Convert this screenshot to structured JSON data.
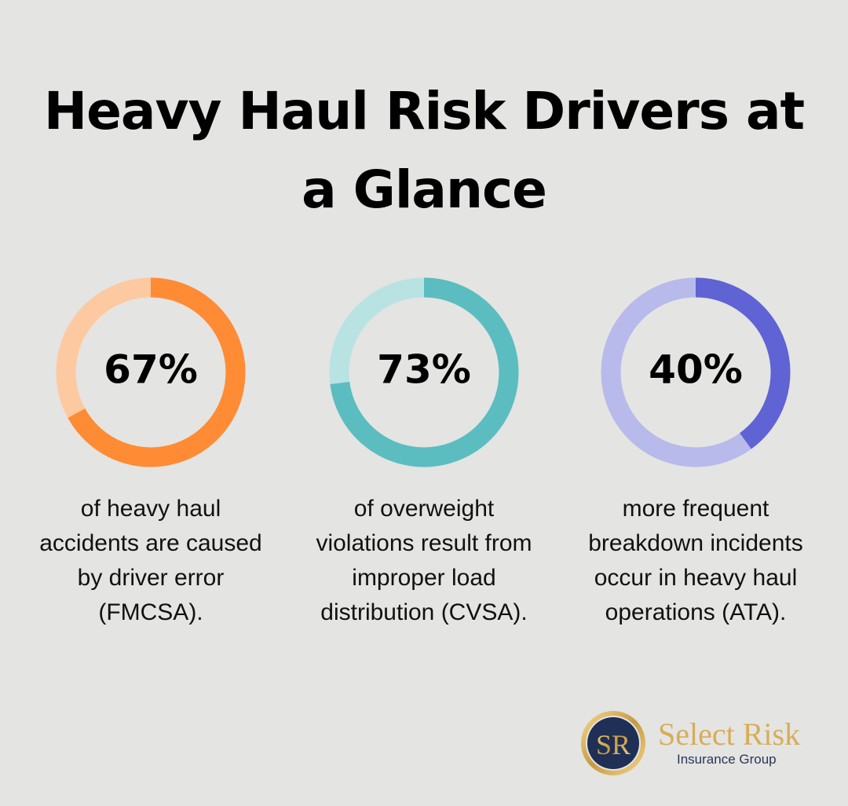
{
  "title": "Heavy Haul Risk Drivers at a Glance",
  "chart_data": [
    {
      "type": "donut",
      "values": [
        67
      ],
      "value_labels": [
        "67%"
      ],
      "color": "#ff8b34",
      "track_color": "#fdc9a1",
      "caption": [
        "of heavy haul",
        "accidents are caused",
        "by driver error",
        "(FMCSA)."
      ]
    },
    {
      "type": "donut",
      "values": [
        73
      ],
      "value_labels": [
        "73%"
      ],
      "color": "#5bbdbf",
      "track_color": "#b9e2e3",
      "caption": [
        "of overweight",
        "violations result from",
        "improper load",
        "distribution (CVSA)."
      ]
    },
    {
      "type": "donut",
      "values": [
        40
      ],
      "value_labels": [
        "40%"
      ],
      "color": "#5f63d3",
      "track_color": "#b8baeb",
      "caption": [
        "more frequent",
        "breakdown incidents",
        "occur in heavy haul",
        "operations (ATA)."
      ]
    }
  ],
  "logo": {
    "monogram": "SR",
    "name": "Select Risk",
    "tagline": "Insurance Group"
  }
}
